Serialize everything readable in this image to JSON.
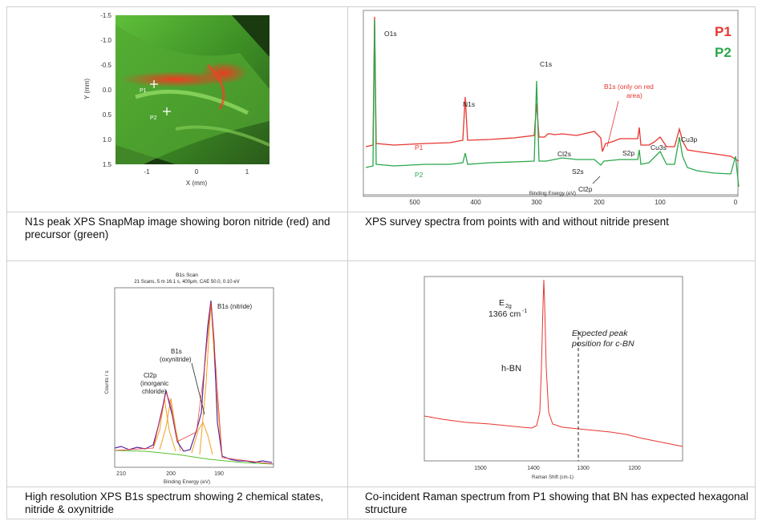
{
  "panel1": {
    "y_axis_label": "Y (mm)",
    "x_axis_label": "X (mm)",
    "y_ticks": [
      "-1.5",
      "-1.0",
      "-0.5",
      "0.0",
      "0.5",
      "1.0",
      "1.5"
    ],
    "x_ticks": [
      "-1",
      "0",
      "1"
    ],
    "point_labels": [
      "P1",
      "P2"
    ],
    "caption": "N1s peak XPS SnapMap image showing boron nitride (red) and precursor (green)"
  },
  "panel2": {
    "legend": [
      {
        "name": "P1",
        "color": "#e8352f"
      },
      {
        "name": "P2",
        "color": "#2aa84a"
      }
    ],
    "peaks": [
      "O1s",
      "C1s",
      "N1s",
      "Cl2s",
      "S2s",
      "Cl2p",
      "S2p",
      "Cu3s",
      "Cu3p"
    ],
    "b1s_note_line1": "B1s (only on red",
    "b1s_note_line2": "area)",
    "series_labels": [
      "P1",
      "P2"
    ],
    "x_ticks": [
      "500",
      "400",
      "300",
      "200",
      "100",
      "0"
    ],
    "x_axis_label": "Binding Energy (eV)",
    "caption": "XPS survey spectra from points with and without nitride present"
  },
  "panel3": {
    "title": "B1s Scan",
    "subtitle": "21 Scans, 5 m 16.1 s, 400μm, CAE 50.0, 0.10 eV",
    "y_axis_label": "Counts / s",
    "x_axis_label": "Binding Energy (eV)",
    "x_ticks": [
      "210",
      "200",
      "190"
    ],
    "annot_nitride": "B1s (nitride)",
    "annot_oxy_1": "B1s",
    "annot_oxy_2": "(oxynitride)",
    "annot_cl_1": "Cl2p",
    "annot_cl_2": "(inorganic",
    "annot_cl_3": "chloride)",
    "caption": "High resolution XPS B1s spectrum showing 2 chemical states, nitride & oxynitride"
  },
  "panel4": {
    "peak_label": "E",
    "peak_sub": "2g",
    "peak_pos": "1366 cm",
    "peak_sup": "-1",
    "hbn_label": "h-BN",
    "expected_1": "Expected peak",
    "expected_2": "position for c-BN",
    "x_ticks": [
      "1500",
      "1400",
      "1300",
      "1200"
    ],
    "x_axis_label": "Raman Shift (cm-1)",
    "caption": "Co-incident Raman spectrum from P1 showing that BN has expected hexagonal structure"
  },
  "colors": {
    "red": "#e8352f",
    "green": "#2aa84a",
    "purple": "#5a2aa0",
    "orange": "#f0a020"
  }
}
